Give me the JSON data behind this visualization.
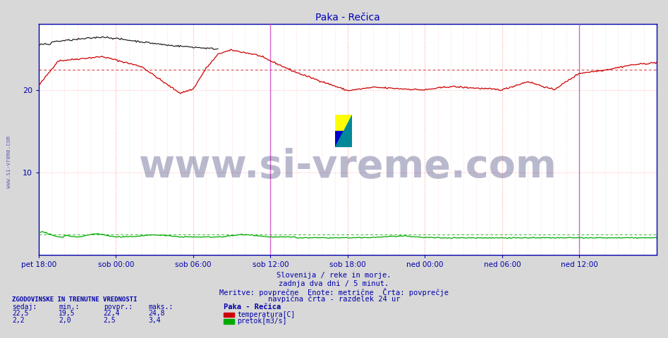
{
  "title": "Paka - Rečica",
  "bg_color": "#d8d8d8",
  "plot_bg_color": "#ffffff",
  "title_color": "#0000bb",
  "axis_color": "#0000aa",
  "text_color": "#0000aa",
  "x_labels": [
    "pet 18:00",
    "sob 00:00",
    "sob 06:00",
    "sob 12:00",
    "sob 18:00",
    "ned 00:00",
    "ned 06:00",
    "ned 12:00"
  ],
  "x_tick_positions": [
    0,
    72,
    144,
    216,
    288,
    360,
    432,
    504
  ],
  "total_points": 577,
  "y_min": 0,
  "y_max": 28,
  "y_ticks": [
    10,
    20
  ],
  "temp_avg": 22.4,
  "flow_avg": 2.5,
  "temp_color": "#cc0000",
  "flow_color": "#00aa00",
  "black_line_color": "#222222",
  "vline_color": "#bb44bb",
  "watermark_text": "www.si-vreme.com",
  "watermark_color": "#1a1a5e",
  "watermark_alpha": 0.3,
  "watermark_fontsize": 40,
  "footer_lines": [
    "Slovenija / reke in morje.",
    "zadnja dva dni / 5 minut.",
    "Meritve: povprečne  Enote: metrične  Črta: povprečje",
    "navpična črta - razdelek 24 ur"
  ],
  "stats_title": "ZGODOVINSKE IN TRENUTNE VREDNOSTI",
  "stats_headers": [
    "sedaj:",
    "min.:",
    "povpr.:",
    "maks.:"
  ],
  "stats_row1": [
    "22,5",
    "19,5",
    "22,4",
    "24,8"
  ],
  "stats_row2": [
    "2,2",
    "2,0",
    "2,5",
    "3,4"
  ],
  "legend_title": "Paka - Rečica",
  "legend_items": [
    "temperatura[C]",
    "pretok[m3/s]"
  ],
  "legend_colors": [
    "#cc0000",
    "#00aa00"
  ],
  "sidebar_text": "www.si-vreme.com",
  "sidebar_color": "#4444aa"
}
